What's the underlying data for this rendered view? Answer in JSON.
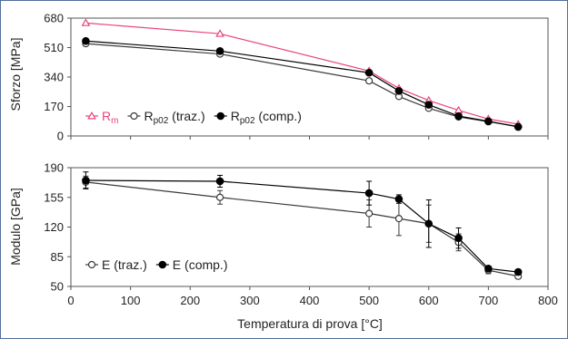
{
  "chart_data": [
    {
      "type": "line",
      "ylabel": "Sforzo [MPa]",
      "xlim": [
        0,
        800
      ],
      "ylim": [
        0,
        680
      ],
      "yticks": [
        "0",
        "170",
        "340",
        "510",
        "680"
      ],
      "legend_position": "bottom-left",
      "series": [
        {
          "name": "Rm",
          "name_main": "R",
          "name_sub": "m",
          "name_suffix": "",
          "color": "#e8457c",
          "marker": "open-triangle",
          "x": [
            25,
            250,
            500,
            550,
            600,
            650,
            700,
            750
          ],
          "y": [
            652,
            590,
            375,
            275,
            205,
            148,
            98,
            68
          ]
        },
        {
          "name": "Rp02 (traz.)",
          "name_main": "R",
          "name_sub": "p02",
          "name_suffix": " (traz.)",
          "color": "#3a3a3a",
          "marker": "open-circle",
          "x": [
            25,
            250,
            500,
            550,
            600,
            650,
            700,
            750
          ],
          "y": [
            533,
            473,
            318,
            228,
            160,
            110,
            82,
            55
          ]
        },
        {
          "name": "Rp02 (comp.)",
          "name_main": "R",
          "name_sub": "p02",
          "name_suffix": " (comp.)",
          "color": "#000000",
          "marker": "filled-circle",
          "x": [
            25,
            250,
            500,
            550,
            600,
            650,
            700,
            750
          ],
          "y": [
            548,
            490,
            365,
            260,
            180,
            115,
            85,
            52
          ]
        }
      ]
    },
    {
      "type": "line",
      "xlabel": "Temperatura di prova [°C]",
      "ylabel": "Modulo [GPa]",
      "xlim": [
        0,
        800
      ],
      "ylim": [
        50,
        190
      ],
      "xticks": [
        "0",
        "100",
        "200",
        "300",
        "400",
        "500",
        "600",
        "700",
        "800"
      ],
      "yticks": [
        "50",
        "85",
        "120",
        "155",
        "190"
      ],
      "legend_position": "bottom-left",
      "series": [
        {
          "name": "E (traz.)",
          "name_main": "E",
          "name_sub": "",
          "name_suffix": " (traz.)",
          "color": "#3a3a3a",
          "marker": "open-circle",
          "x": [
            25,
            250,
            500,
            550,
            600,
            650,
            700,
            750
          ],
          "y": [
            173,
            155,
            136,
            130,
            124,
            102,
            69,
            62
          ],
          "yerr": [
            7,
            8,
            16,
            20,
            22,
            10,
            4,
            3
          ]
        },
        {
          "name": "E (comp.)",
          "name_main": "E",
          "name_sub": "",
          "name_suffix": " (comp.)",
          "color": "#000000",
          "marker": "filled-circle",
          "x": [
            25,
            250,
            500,
            550,
            600,
            650,
            700,
            750
          ],
          "y": [
            175,
            174,
            160,
            153,
            124,
            107,
            71,
            67
          ],
          "yerr": [
            10,
            7,
            14,
            5,
            28,
            12,
            3,
            3
          ]
        }
      ]
    }
  ]
}
